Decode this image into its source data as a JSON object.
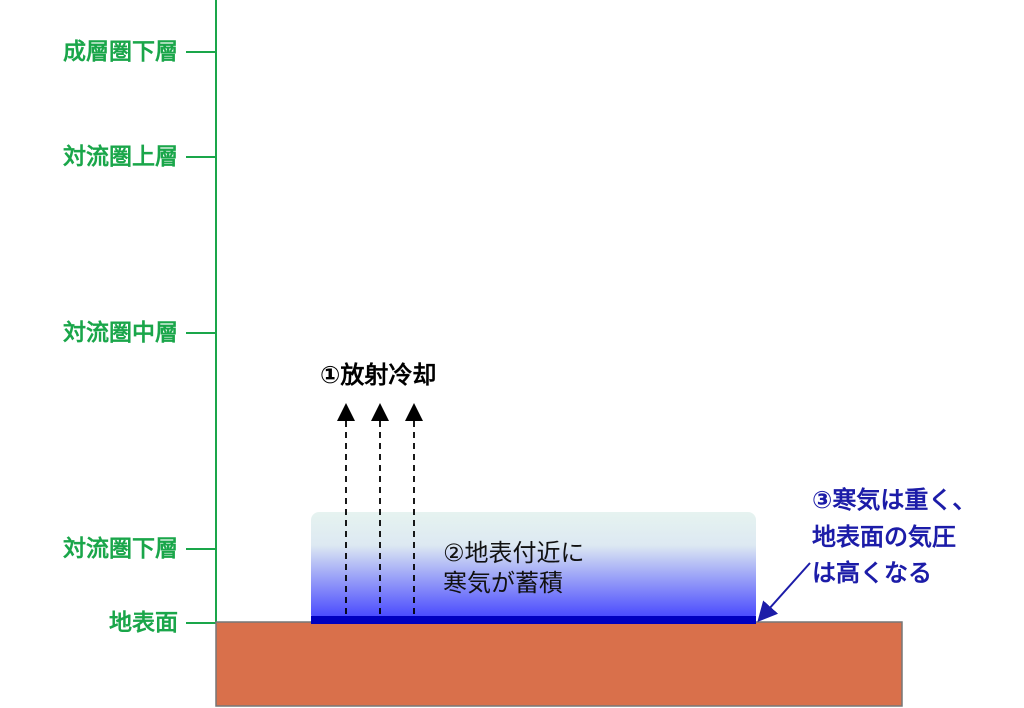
{
  "levels": [
    {
      "label": "成層圏下層"
    },
    {
      "label": "対流圏上層"
    },
    {
      "label": "対流圏中層"
    },
    {
      "label": "対流圏下層"
    },
    {
      "label": "地表面"
    }
  ],
  "annotations": {
    "step1": "①放射冷却",
    "step2_line1": "②地表付近に",
    "step2_line2": "寒気が蓄積",
    "step3_line1": "③寒気は重く、",
    "step3_line2": "地表面の気圧",
    "step3_line3": "は高くなる"
  },
  "colors": {
    "axis": "#1aa64a",
    "ground": "#d9704b",
    "cold_air_top": "#e6f3f0",
    "cold_air_bottom": "#3f3fff",
    "cold_layer": "#0000c0",
    "step3_text": "#1c1ca8"
  }
}
